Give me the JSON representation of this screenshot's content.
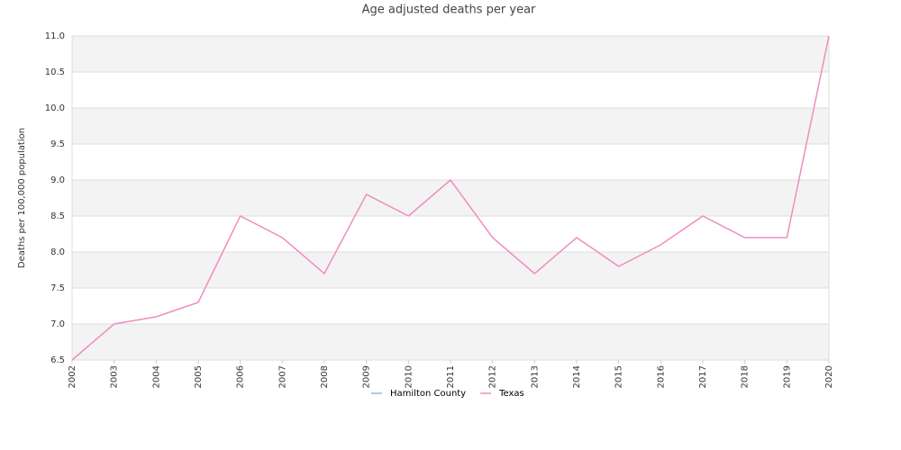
{
  "chart_data": {
    "type": "line",
    "title": "Age adjusted deaths per year",
    "y_label": "Deaths per 100,000 population",
    "categories": [
      "2002",
      "2003",
      "2004",
      "2005",
      "2006",
      "2007",
      "2008",
      "2009",
      "2010",
      "2011",
      "2012",
      "2013",
      "2014",
      "2015",
      "2016",
      "2017",
      "2018",
      "2019",
      "2020"
    ],
    "series": [
      {
        "name": "Hamilton County",
        "color": "#8fb8de",
        "values": [
          null,
          null,
          null,
          null,
          null,
          null,
          null,
          null,
          null,
          null,
          null,
          null,
          null,
          null,
          null,
          null,
          null,
          null,
          null
        ]
      },
      {
        "name": "Texas",
        "color": "#f08cc0",
        "values": [
          6.5,
          7.0,
          7.1,
          7.3,
          8.5,
          8.2,
          7.7,
          8.8,
          8.5,
          9.0,
          8.2,
          7.7,
          8.2,
          7.8,
          8.1,
          8.5,
          8.2,
          8.2,
          11.0
        ]
      }
    ],
    "ylim": [
      6.5,
      11.0
    ],
    "yticks": [
      6.5,
      {
        "value": 7,
        "label": "7.0"
      },
      7.5,
      {
        "value": 8,
        "label": "8.0"
      },
      8.5,
      {
        "value": 9,
        "label": "9.0"
      },
      9.5,
      {
        "value": 10,
        "label": "10.0"
      },
      10.5,
      {
        "value": 11,
        "label": "11.0"
      }
    ],
    "grid": true,
    "legend": "bottom"
  }
}
